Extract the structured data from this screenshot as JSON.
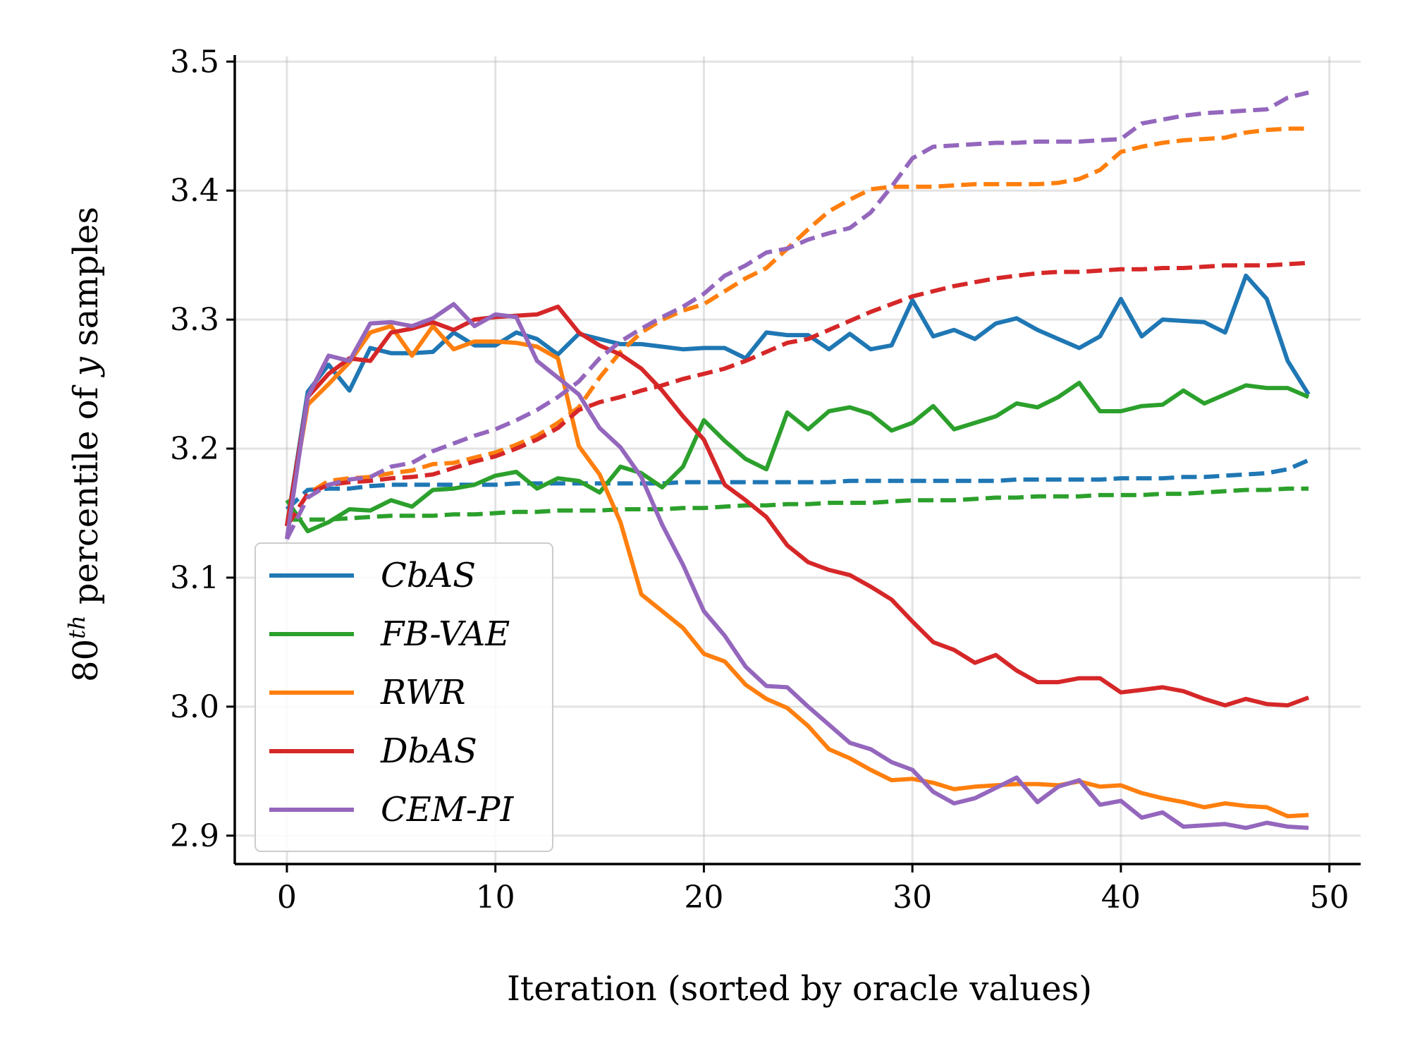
{
  "chart_data": {
    "type": "line",
    "title": "",
    "xlabel": "Iteration (sorted by oracle values)",
    "ylabel_base": "80",
    "ylabel_sup": "th",
    "ylabel_rest": " percentile of ",
    "ylabel_var": "y",
    "ylabel_end": " samples",
    "xlim": [
      -2.5,
      51.5
    ],
    "ylim": [
      2.878,
      3.504
    ],
    "xticks": [
      0,
      10,
      20,
      30,
      40,
      50
    ],
    "xtick_labels": [
      "0",
      "10",
      "20",
      "30",
      "40",
      "50"
    ],
    "yticks": [
      2.9,
      3.0,
      3.1,
      3.2,
      3.3,
      3.4,
      3.5
    ],
    "ytick_labels": [
      "2.9",
      "3.0",
      "3.1",
      "3.2",
      "3.3",
      "3.4",
      "3.5"
    ],
    "grid": true,
    "legend_position": "lower-left",
    "series": [
      {
        "name": "CbAS",
        "color": "#1f77b4",
        "style": "solid",
        "values": [
          3.14,
          3.244,
          3.265,
          3.245,
          3.278,
          3.274,
          3.274,
          3.275,
          3.29,
          3.28,
          3.28,
          3.29,
          3.285,
          3.273,
          3.289,
          3.285,
          3.281,
          3.281,
          3.279,
          3.277,
          3.278,
          3.278,
          3.27,
          3.29,
          3.288,
          3.288,
          3.277,
          3.289,
          3.277,
          3.28,
          3.315,
          3.287,
          3.292,
          3.285,
          3.297,
          3.301,
          3.292,
          3.285,
          3.278,
          3.287,
          3.316,
          3.287,
          3.3,
          3.299,
          3.298,
          3.29,
          3.334,
          3.316,
          3.268,
          3.242
        ]
      },
      {
        "name": "CbAS",
        "color": "#1f77b4",
        "style": "dashed",
        "legend": false,
        "values": [
          3.153,
          3.168,
          3.169,
          3.169,
          3.171,
          3.172,
          3.172,
          3.172,
          3.172,
          3.172,
          3.172,
          3.173,
          3.173,
          3.173,
          3.173,
          3.173,
          3.173,
          3.173,
          3.173,
          3.174,
          3.174,
          3.174,
          3.174,
          3.174,
          3.174,
          3.174,
          3.174,
          3.175,
          3.175,
          3.175,
          3.175,
          3.175,
          3.175,
          3.175,
          3.175,
          3.176,
          3.176,
          3.176,
          3.176,
          3.176,
          3.177,
          3.177,
          3.177,
          3.178,
          3.178,
          3.179,
          3.18,
          3.181,
          3.184,
          3.191
        ]
      },
      {
        "name": "FB-VAE",
        "color": "#2ca02c",
        "style": "solid",
        "values": [
          3.16,
          3.136,
          3.143,
          3.153,
          3.152,
          3.16,
          3.155,
          3.168,
          3.169,
          3.172,
          3.179,
          3.182,
          3.169,
          3.177,
          3.175,
          3.166,
          3.186,
          3.181,
          3.17,
          3.186,
          3.222,
          3.206,
          3.192,
          3.184,
          3.228,
          3.215,
          3.229,
          3.232,
          3.227,
          3.214,
          3.22,
          3.233,
          3.215,
          3.22,
          3.225,
          3.235,
          3.232,
          3.24,
          3.251,
          3.229,
          3.229,
          3.233,
          3.234,
          3.245,
          3.235,
          3.242,
          3.249,
          3.247,
          3.247,
          3.24
        ]
      },
      {
        "name": "FB-VAE",
        "color": "#2ca02c",
        "style": "dashed",
        "legend": false,
        "values": [
          3.145,
          3.145,
          3.145,
          3.146,
          3.147,
          3.148,
          3.148,
          3.148,
          3.149,
          3.149,
          3.15,
          3.151,
          3.151,
          3.152,
          3.152,
          3.152,
          3.153,
          3.153,
          3.153,
          3.154,
          3.154,
          3.155,
          3.156,
          3.156,
          3.157,
          3.157,
          3.158,
          3.158,
          3.158,
          3.159,
          3.16,
          3.16,
          3.16,
          3.161,
          3.162,
          3.162,
          3.163,
          3.163,
          3.163,
          3.164,
          3.164,
          3.164,
          3.165,
          3.165,
          3.166,
          3.167,
          3.168,
          3.168,
          3.169,
          3.169
        ]
      },
      {
        "name": "RWR",
        "color": "#ff7f0e",
        "style": "solid",
        "values": [
          3.14,
          3.234,
          3.25,
          3.267,
          3.29,
          3.295,
          3.272,
          3.295,
          3.277,
          3.283,
          3.283,
          3.282,
          3.279,
          3.27,
          3.202,
          3.18,
          3.143,
          3.087,
          3.074,
          3.061,
          3.041,
          3.035,
          3.017,
          3.006,
          2.999,
          2.985,
          2.967,
          2.96,
          2.951,
          2.943,
          2.944,
          2.941,
          2.936,
          2.938,
          2.939,
          2.94,
          2.94,
          2.939,
          2.942,
          2.938,
          2.939,
          2.933,
          2.929,
          2.926,
          2.922,
          2.925,
          2.923,
          2.922,
          2.915,
          2.916
        ]
      },
      {
        "name": "RWR",
        "color": "#ff7f0e",
        "style": "dashed",
        "legend": false,
        "values": [
          3.14,
          3.165,
          3.175,
          3.177,
          3.178,
          3.181,
          3.183,
          3.188,
          3.189,
          3.193,
          3.197,
          3.203,
          3.21,
          3.22,
          3.232,
          3.255,
          3.275,
          3.29,
          3.3,
          3.307,
          3.312,
          3.322,
          3.332,
          3.34,
          3.355,
          3.37,
          3.384,
          3.393,
          3.401,
          3.403,
          3.403,
          3.403,
          3.404,
          3.405,
          3.405,
          3.405,
          3.405,
          3.406,
          3.409,
          3.416,
          3.43,
          3.434,
          3.437,
          3.439,
          3.44,
          3.441,
          3.445,
          3.447,
          3.448,
          3.448
        ]
      },
      {
        "name": "DbAS",
        "color": "#d62728",
        "style": "solid",
        "values": [
          3.14,
          3.24,
          3.258,
          3.27,
          3.268,
          3.29,
          3.293,
          3.298,
          3.292,
          3.3,
          3.302,
          3.303,
          3.304,
          3.31,
          3.29,
          3.28,
          3.273,
          3.262,
          3.245,
          3.225,
          3.207,
          3.172,
          3.16,
          3.147,
          3.125,
          3.112,
          3.106,
          3.102,
          3.093,
          3.083,
          3.066,
          3.05,
          3.044,
          3.034,
          3.04,
          3.028,
          3.019,
          3.019,
          3.022,
          3.022,
          3.011,
          3.013,
          3.015,
          3.012,
          3.006,
          3.001,
          3.006,
          3.002,
          3.001,
          3.007
        ]
      },
      {
        "name": "DbAS",
        "color": "#d62728",
        "style": "dashed",
        "legend": false,
        "values": [
          3.14,
          3.165,
          3.172,
          3.174,
          3.175,
          3.177,
          3.178,
          3.18,
          3.185,
          3.19,
          3.194,
          3.2,
          3.207,
          3.216,
          3.23,
          3.236,
          3.24,
          3.245,
          3.249,
          3.254,
          3.258,
          3.262,
          3.268,
          3.275,
          3.282,
          3.285,
          3.292,
          3.299,
          3.306,
          3.312,
          3.318,
          3.322,
          3.326,
          3.329,
          3.332,
          3.334,
          3.336,
          3.337,
          3.337,
          3.338,
          3.339,
          3.339,
          3.34,
          3.34,
          3.341,
          3.342,
          3.342,
          3.342,
          3.343,
          3.344
        ]
      },
      {
        "name": "CEM-PI",
        "color": "#9467bd",
        "style": "solid",
        "values": [
          3.13,
          3.24,
          3.272,
          3.268,
          3.297,
          3.298,
          3.295,
          3.301,
          3.312,
          3.295,
          3.304,
          3.302,
          3.268,
          3.255,
          3.242,
          3.216,
          3.201,
          3.178,
          3.141,
          3.11,
          3.074,
          3.055,
          3.031,
          3.016,
          3.015,
          3.0,
          2.986,
          2.972,
          2.967,
          2.957,
          2.951,
          2.934,
          2.925,
          2.929,
          2.937,
          2.945,
          2.926,
          2.938,
          2.943,
          2.924,
          2.927,
          2.914,
          2.918,
          2.907,
          2.908,
          2.909,
          2.906,
          2.91,
          2.907,
          2.906
        ]
      },
      {
        "name": "CEM-PI",
        "color": "#9467bd",
        "style": "dashed",
        "legend": false,
        "values": [
          3.13,
          3.162,
          3.172,
          3.176,
          3.178,
          3.186,
          3.189,
          3.198,
          3.204,
          3.21,
          3.215,
          3.222,
          3.23,
          3.24,
          3.252,
          3.27,
          3.283,
          3.293,
          3.302,
          3.31,
          3.32,
          3.334,
          3.342,
          3.352,
          3.355,
          3.362,
          3.367,
          3.371,
          3.383,
          3.403,
          3.425,
          3.434,
          3.435,
          3.436,
          3.437,
          3.437,
          3.438,
          3.438,
          3.438,
          3.439,
          3.44,
          3.452,
          3.455,
          3.458,
          3.46,
          3.461,
          3.462,
          3.463,
          3.472,
          3.476
        ]
      }
    ]
  }
}
